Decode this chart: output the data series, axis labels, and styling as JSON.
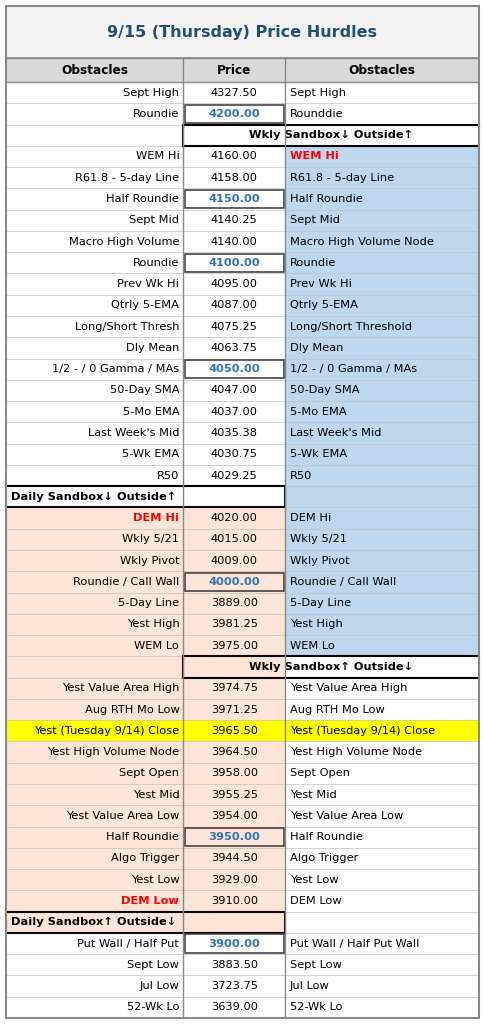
{
  "title": "9/15 (Thursday) Price Hurdles",
  "title_color": "#1F4E79",
  "header": [
    "Obstacles",
    "Price",
    "Obstacles"
  ],
  "rows": [
    {
      "left": "Sept High",
      "price": "4327.50",
      "right": "Sept High",
      "bg_left": "white",
      "bg_right": "white",
      "price_bold": false,
      "left_red": false,
      "right_red": false,
      "border_price": false,
      "is_sandbox": false,
      "sandbox_text": "",
      "sandbox_side": ""
    },
    {
      "left": "Roundie",
      "price": "4200.00",
      "right": "Rounddie",
      "bg_left": "white",
      "bg_right": "white",
      "price_bold": true,
      "left_red": false,
      "right_red": false,
      "border_price": true,
      "is_sandbox": false,
      "sandbox_text": "",
      "sandbox_side": ""
    },
    {
      "left": "",
      "price": "",
      "right": "",
      "bg_left": "white",
      "bg_right": "white",
      "price_bold": false,
      "left_red": false,
      "right_red": false,
      "border_price": false,
      "is_sandbox": true,
      "sandbox_text": "Wkly Sandbox↓ Outside↑",
      "sandbox_side": "right"
    },
    {
      "left": "WEM Hi",
      "price": "4160.00",
      "right": "WEM Hi",
      "bg_left": "white",
      "bg_right": "#BDD7EE",
      "price_bold": false,
      "left_red": false,
      "right_red": true,
      "border_price": false,
      "is_sandbox": false,
      "sandbox_text": "",
      "sandbox_side": ""
    },
    {
      "left": "R61.8 - 5-day Line",
      "price": "4158.00",
      "right": "R61.8 - 5-day Line",
      "bg_left": "white",
      "bg_right": "#BDD7EE",
      "price_bold": false,
      "left_red": false,
      "right_red": false,
      "border_price": false,
      "is_sandbox": false,
      "sandbox_text": "",
      "sandbox_side": ""
    },
    {
      "left": "Half Roundie",
      "price": "4150.00",
      "right": "Half Roundie",
      "bg_left": "white",
      "bg_right": "#BDD7EE",
      "price_bold": true,
      "left_red": false,
      "right_red": false,
      "border_price": true,
      "is_sandbox": false,
      "sandbox_text": "",
      "sandbox_side": ""
    },
    {
      "left": "Sept Mid",
      "price": "4140.25",
      "right": "Sept Mid",
      "bg_left": "white",
      "bg_right": "#BDD7EE",
      "price_bold": false,
      "left_red": false,
      "right_red": false,
      "border_price": false,
      "is_sandbox": false,
      "sandbox_text": "",
      "sandbox_side": ""
    },
    {
      "left": "Macro High Volume",
      "price": "4140.00",
      "right": "Macro High Volume Node",
      "bg_left": "white",
      "bg_right": "#BDD7EE",
      "price_bold": false,
      "left_red": false,
      "right_red": false,
      "border_price": false,
      "is_sandbox": false,
      "sandbox_text": "",
      "sandbox_side": ""
    },
    {
      "left": "Roundie",
      "price": "4100.00",
      "right": "Roundie",
      "bg_left": "white",
      "bg_right": "#BDD7EE",
      "price_bold": true,
      "left_red": false,
      "right_red": false,
      "border_price": true,
      "is_sandbox": false,
      "sandbox_text": "",
      "sandbox_side": ""
    },
    {
      "left": "Prev Wk Hi",
      "price": "4095.00",
      "right": "Prev Wk Hi",
      "bg_left": "white",
      "bg_right": "#BDD7EE",
      "price_bold": false,
      "left_red": false,
      "right_red": false,
      "border_price": false,
      "is_sandbox": false,
      "sandbox_text": "",
      "sandbox_side": ""
    },
    {
      "left": "Qtrly 5-EMA",
      "price": "4087.00",
      "right": "Qtrly 5-EMA",
      "bg_left": "white",
      "bg_right": "#BDD7EE",
      "price_bold": false,
      "left_red": false,
      "right_red": false,
      "border_price": false,
      "is_sandbox": false,
      "sandbox_text": "",
      "sandbox_side": ""
    },
    {
      "left": "Long/Short Thresh",
      "price": "4075.25",
      "right": "Long/Short Threshold",
      "bg_left": "white",
      "bg_right": "#BDD7EE",
      "price_bold": false,
      "left_red": false,
      "right_red": false,
      "border_price": false,
      "is_sandbox": false,
      "sandbox_text": "",
      "sandbox_side": ""
    },
    {
      "left": "Dly Mean",
      "price": "4063.75",
      "right": "Dly Mean",
      "bg_left": "white",
      "bg_right": "#BDD7EE",
      "price_bold": false,
      "left_red": false,
      "right_red": false,
      "border_price": false,
      "is_sandbox": false,
      "sandbox_text": "",
      "sandbox_side": ""
    },
    {
      "left": "1/2 - / 0 Gamma / MAs",
      "price": "4050.00",
      "right": "1/2 - / 0 Gamma / MAs",
      "bg_left": "white",
      "bg_right": "#BDD7EE",
      "price_bold": true,
      "left_red": false,
      "right_red": false,
      "border_price": true,
      "is_sandbox": false,
      "sandbox_text": "",
      "sandbox_side": ""
    },
    {
      "left": "50-Day SMA",
      "price": "4047.00",
      "right": "50-Day SMA",
      "bg_left": "white",
      "bg_right": "#BDD7EE",
      "price_bold": false,
      "left_red": false,
      "right_red": false,
      "border_price": false,
      "is_sandbox": false,
      "sandbox_text": "",
      "sandbox_side": ""
    },
    {
      "left": "5-Mo EMA",
      "price": "4037.00",
      "right": "5-Mo EMA",
      "bg_left": "white",
      "bg_right": "#BDD7EE",
      "price_bold": false,
      "left_red": false,
      "right_red": false,
      "border_price": false,
      "is_sandbox": false,
      "sandbox_text": "",
      "sandbox_side": ""
    },
    {
      "left": "Last Week's Mid",
      "price": "4035.38",
      "right": "Last Week's Mid",
      "bg_left": "white",
      "bg_right": "#BDD7EE",
      "price_bold": false,
      "left_red": false,
      "right_red": false,
      "border_price": false,
      "is_sandbox": false,
      "sandbox_text": "",
      "sandbox_side": ""
    },
    {
      "left": "5-Wk EMA",
      "price": "4030.75",
      "right": "5-Wk EMA",
      "bg_left": "white",
      "bg_right": "#BDD7EE",
      "price_bold": false,
      "left_red": false,
      "right_red": false,
      "border_price": false,
      "is_sandbox": false,
      "sandbox_text": "",
      "sandbox_side": ""
    },
    {
      "left": "R50",
      "price": "4029.25",
      "right": "R50",
      "bg_left": "white",
      "bg_right": "#BDD7EE",
      "price_bold": false,
      "left_red": false,
      "right_red": false,
      "border_price": false,
      "is_sandbox": false,
      "sandbox_text": "",
      "sandbox_side": ""
    },
    {
      "left": "",
      "price": "",
      "right": "",
      "bg_left": "white",
      "bg_right": "#BDD7EE",
      "price_bold": false,
      "left_red": false,
      "right_red": false,
      "border_price": false,
      "is_sandbox": true,
      "sandbox_text": "Daily Sandbox↓ Outside↑",
      "sandbox_side": "left"
    },
    {
      "left": "DEM Hi",
      "price": "4020.00",
      "right": "DEM Hi",
      "bg_left": "#FCE4D6",
      "bg_right": "#BDD7EE",
      "price_bold": false,
      "left_red": true,
      "right_red": false,
      "border_price": false,
      "is_sandbox": false,
      "sandbox_text": "",
      "sandbox_side": ""
    },
    {
      "left": "Wkly 5/21",
      "price": "4015.00",
      "right": "Wkly 5/21",
      "bg_left": "#FCE4D6",
      "bg_right": "#BDD7EE",
      "price_bold": false,
      "left_red": false,
      "right_red": false,
      "border_price": false,
      "is_sandbox": false,
      "sandbox_text": "",
      "sandbox_side": ""
    },
    {
      "left": "Wkly Pivot",
      "price": "4009.00",
      "right": "Wkly Pivot",
      "bg_left": "#FCE4D6",
      "bg_right": "#BDD7EE",
      "price_bold": false,
      "left_red": false,
      "right_red": false,
      "border_price": false,
      "is_sandbox": false,
      "sandbox_text": "",
      "sandbox_side": ""
    },
    {
      "left": "Roundie / Call Wall",
      "price": "4000.00",
      "right": "Roundie / Call Wall",
      "bg_left": "#FCE4D6",
      "bg_right": "#BDD7EE",
      "price_bold": true,
      "left_red": false,
      "right_red": false,
      "border_price": true,
      "is_sandbox": false,
      "sandbox_text": "",
      "sandbox_side": ""
    },
    {
      "left": "5-Day Line",
      "price": "3889.00",
      "right": "5-Day Line",
      "bg_left": "#FCE4D6",
      "bg_right": "#BDD7EE",
      "price_bold": false,
      "left_red": false,
      "right_red": false,
      "border_price": false,
      "is_sandbox": false,
      "sandbox_text": "",
      "sandbox_side": ""
    },
    {
      "left": "Yest High",
      "price": "3981.25",
      "right": "Yest High",
      "bg_left": "#FCE4D6",
      "bg_right": "#BDD7EE",
      "price_bold": false,
      "left_red": false,
      "right_red": false,
      "border_price": false,
      "is_sandbox": false,
      "sandbox_text": "",
      "sandbox_side": ""
    },
    {
      "left": "WEM Lo",
      "price": "3975.00",
      "right": "WEM Lo",
      "bg_left": "#FCE4D6",
      "bg_right": "#BDD7EE",
      "price_bold": false,
      "left_red": false,
      "right_red": false,
      "border_price": false,
      "is_sandbox": false,
      "sandbox_text": "",
      "sandbox_side": ""
    },
    {
      "left": "",
      "price": "",
      "right": "",
      "bg_left": "#FCE4D6",
      "bg_right": "white",
      "price_bold": false,
      "left_red": false,
      "right_red": false,
      "border_price": false,
      "is_sandbox": true,
      "sandbox_text": "Wkly Sandbox↑ Outside↓",
      "sandbox_side": "right"
    },
    {
      "left": "Yest Value Area High",
      "price": "3974.75",
      "right": "Yest Value Area High",
      "bg_left": "#FCE4D6",
      "bg_right": "white",
      "price_bold": false,
      "left_red": false,
      "right_red": false,
      "border_price": false,
      "is_sandbox": false,
      "sandbox_text": "",
      "sandbox_side": ""
    },
    {
      "left": "Aug RTH Mo Low",
      "price": "3971.25",
      "right": "Aug RTH Mo Low",
      "bg_left": "#FCE4D6",
      "bg_right": "white",
      "price_bold": false,
      "left_red": false,
      "right_red": false,
      "border_price": false,
      "is_sandbox": false,
      "sandbox_text": "",
      "sandbox_side": ""
    },
    {
      "left": "Yest (Tuesday 9/14) Close",
      "price": "3965.50",
      "right": "Yest (Tuesday 9/14) Close",
      "bg_left": "#FFFF00",
      "bg_right": "#FFFF00",
      "price_bold": false,
      "left_red": false,
      "right_red": false,
      "border_price": false,
      "is_sandbox": false,
      "sandbox_text": "",
      "sandbox_side": ""
    },
    {
      "left": "Yest High Volume Node",
      "price": "3964.50",
      "right": "Yest High Volume Node",
      "bg_left": "#FCE4D6",
      "bg_right": "white",
      "price_bold": false,
      "left_red": false,
      "right_red": false,
      "border_price": false,
      "is_sandbox": false,
      "sandbox_text": "",
      "sandbox_side": ""
    },
    {
      "left": "Sept Open",
      "price": "3958.00",
      "right": "Sept Open",
      "bg_left": "#FCE4D6",
      "bg_right": "white",
      "price_bold": false,
      "left_red": false,
      "right_red": false,
      "border_price": false,
      "is_sandbox": false,
      "sandbox_text": "",
      "sandbox_side": ""
    },
    {
      "left": "Yest Mid",
      "price": "3955.25",
      "right": "Yest Mid",
      "bg_left": "#FCE4D6",
      "bg_right": "white",
      "price_bold": false,
      "left_red": false,
      "right_red": false,
      "border_price": false,
      "is_sandbox": false,
      "sandbox_text": "",
      "sandbox_side": ""
    },
    {
      "left": "Yest Value Area Low",
      "price": "3954.00",
      "right": "Yest Value Area Low",
      "bg_left": "#FCE4D6",
      "bg_right": "white",
      "price_bold": false,
      "left_red": false,
      "right_red": false,
      "border_price": false,
      "is_sandbox": false,
      "sandbox_text": "",
      "sandbox_side": ""
    },
    {
      "left": "Half Roundie",
      "price": "3950.00",
      "right": "Half Roundie",
      "bg_left": "#FCE4D6",
      "bg_right": "white",
      "price_bold": true,
      "left_red": false,
      "right_red": false,
      "border_price": true,
      "is_sandbox": false,
      "sandbox_text": "",
      "sandbox_side": ""
    },
    {
      "left": "Algo Trigger",
      "price": "3944.50",
      "right": "Algo Trigger",
      "bg_left": "#FCE4D6",
      "bg_right": "white",
      "price_bold": false,
      "left_red": false,
      "right_red": false,
      "border_price": false,
      "is_sandbox": false,
      "sandbox_text": "",
      "sandbox_side": ""
    },
    {
      "left": "Yest Low",
      "price": "3929.00",
      "right": "Yest Low",
      "bg_left": "#FCE4D6",
      "bg_right": "white",
      "price_bold": false,
      "left_red": false,
      "right_red": false,
      "border_price": false,
      "is_sandbox": false,
      "sandbox_text": "",
      "sandbox_side": ""
    },
    {
      "left": "DEM Low",
      "price": "3910.00",
      "right": "DEM Low",
      "bg_left": "#FCE4D6",
      "bg_right": "white",
      "price_bold": false,
      "left_red": true,
      "right_red": false,
      "border_price": false,
      "is_sandbox": false,
      "sandbox_text": "",
      "sandbox_side": ""
    },
    {
      "left": "",
      "price": "",
      "right": "",
      "bg_left": "#FCE4D6",
      "bg_right": "white",
      "price_bold": false,
      "left_red": false,
      "right_red": false,
      "border_price": false,
      "is_sandbox": true,
      "sandbox_text": "Daily Sandbox↑ Outside↓",
      "sandbox_side": "left"
    },
    {
      "left": "Put Wall / Half Put",
      "price": "3900.00",
      "right": "Put Wall / Half Put Wall",
      "bg_left": "white",
      "bg_right": "white",
      "price_bold": true,
      "left_red": false,
      "right_red": false,
      "border_price": true,
      "is_sandbox": false,
      "sandbox_text": "",
      "sandbox_side": ""
    },
    {
      "left": "Sept Low",
      "price": "3883.50",
      "right": "Sept Low",
      "bg_left": "white",
      "bg_right": "white",
      "price_bold": false,
      "left_red": false,
      "right_red": false,
      "border_price": false,
      "is_sandbox": false,
      "sandbox_text": "",
      "sandbox_side": ""
    },
    {
      "left": "Jul Low",
      "price": "3723.75",
      "right": "Jul Low",
      "bg_left": "white",
      "bg_right": "white",
      "price_bold": false,
      "left_red": false,
      "right_red": false,
      "border_price": false,
      "is_sandbox": false,
      "sandbox_text": "",
      "sandbox_side": ""
    },
    {
      "left": "52-Wk Lo",
      "price": "3639.00",
      "right": "52-Wk Lo",
      "bg_left": "white",
      "bg_right": "white",
      "price_bold": false,
      "left_red": false,
      "right_red": false,
      "border_price": false,
      "is_sandbox": false,
      "sandbox_text": "",
      "sandbox_side": ""
    }
  ],
  "title_bg": "#F2F2F2",
  "header_bg": "#D9D9D9",
  "price_color_bold": "#2E74B5",
  "price_color_normal": "black",
  "font_size": 8.2,
  "title_fontsize": 11.5
}
